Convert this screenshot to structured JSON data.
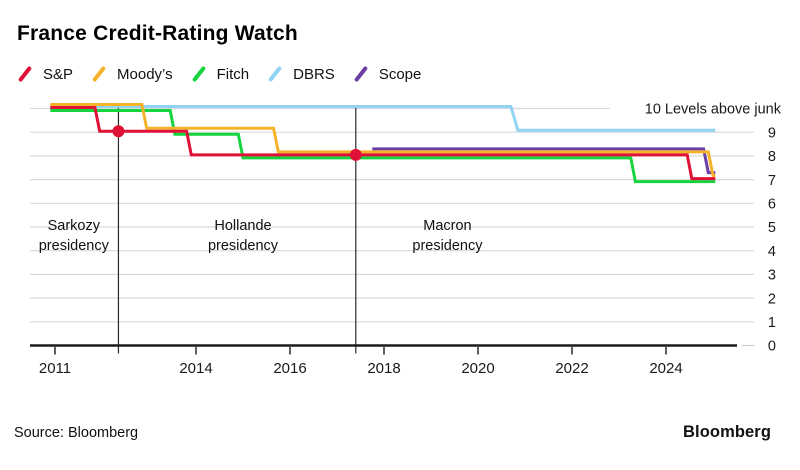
{
  "title": "France Credit-Rating Watch",
  "footer": {
    "source": "Source: Bloomberg",
    "logo": "Bloomberg"
  },
  "chart_data": {
    "type": "line",
    "title": "France Credit-Rating Watch",
    "ylabel": "Levels above junk",
    "y_axis_top_label": "10 Levels above junk",
    "ylim": [
      0,
      10
    ],
    "y_ticks": [
      0,
      1,
      2,
      3,
      4,
      5,
      6,
      7,
      8,
      9
    ],
    "x_ticks": [
      2011,
      2014,
      2016,
      2018,
      2020,
      2022,
      2024
    ],
    "xlim": [
      2010.5,
      2025.5
    ],
    "grid": true,
    "legend_position": "top-left",
    "series": [
      {
        "name": "S&P",
        "color": "#df1137",
        "points": [
          [
            2010.9,
            10
          ],
          [
            2011.85,
            10
          ],
          [
            2011.95,
            9
          ],
          [
            2013.8,
            9
          ],
          [
            2013.9,
            8
          ],
          [
            2024.45,
            8
          ],
          [
            2024.55,
            7
          ],
          [
            2025.05,
            7
          ]
        ]
      },
      {
        "name": "Moody’s",
        "color": "#f5b32a",
        "points": [
          [
            2010.9,
            10
          ],
          [
            2012.85,
            10
          ],
          [
            2012.95,
            9
          ],
          [
            2015.65,
            9
          ],
          [
            2015.75,
            8
          ],
          [
            2024.9,
            8
          ],
          [
            2025.0,
            7
          ],
          [
            2025.05,
            7
          ]
        ]
      },
      {
        "name": "Fitch",
        "color": "#16d43f",
        "points": [
          [
            2010.9,
            10
          ],
          [
            2013.45,
            10
          ],
          [
            2013.55,
            9
          ],
          [
            2014.9,
            9
          ],
          [
            2015.0,
            8
          ],
          [
            2023.25,
            8
          ],
          [
            2023.35,
            7
          ],
          [
            2025.05,
            7
          ]
        ]
      },
      {
        "name": "DBRS",
        "color": "#90d3f4",
        "points": [
          [
            2010.9,
            10
          ],
          [
            2020.7,
            10
          ],
          [
            2020.85,
            9
          ],
          [
            2025.05,
            9
          ]
        ]
      },
      {
        "name": "Scope",
        "color": "#6b3fa4",
        "points": [
          [
            2017.75,
            8
          ],
          [
            2024.8,
            8
          ],
          [
            2024.9,
            7
          ],
          [
            2025.05,
            7
          ]
        ]
      }
    ],
    "event_markers": [
      {
        "x": 2012.35,
        "y": 9
      },
      {
        "x": 2017.4,
        "y": 8
      }
    ],
    "vlines": [
      {
        "x": 2012.35
      },
      {
        "x": 2017.4
      }
    ],
    "annotations": [
      {
        "lines": [
          "Sarkozy",
          "presidency"
        ],
        "x": 2011.4
      },
      {
        "lines": [
          "Hollande",
          "presidency"
        ],
        "x": 2015.0
      },
      {
        "lines": [
          "Macron",
          "presidency"
        ],
        "x": 2019.35
      }
    ]
  }
}
